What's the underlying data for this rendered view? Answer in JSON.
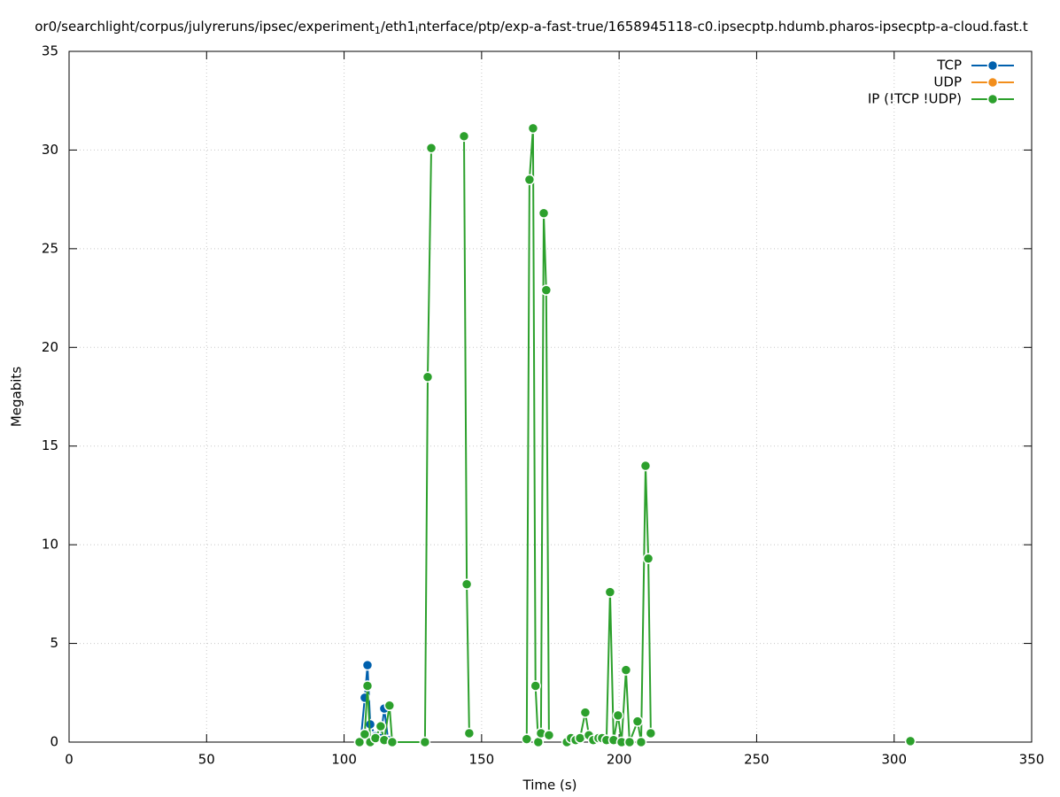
{
  "chart_data": {
    "type": "line",
    "title": [
      "or0/searchlight/corpus/julyreruns/ipsec/experiment",
      "1",
      "/eth1",
      "i",
      "nterface/ptp/exp-a-fast-true/1658945118-c0.ipsecptp.hdumb.pharos-ipsecptp-a-cloud.fast.t"
    ],
    "xlabel": "Time (s)",
    "ylabel": "Megabits",
    "xlim": [
      0,
      350
    ],
    "xticks": [
      0,
      50,
      100,
      150,
      200,
      250,
      300,
      350
    ],
    "ylim": [
      0,
      35
    ],
    "yticks": [
      0,
      5,
      10,
      15,
      20,
      25,
      30,
      35
    ],
    "grid": true,
    "legend": "top-right",
    "series": [
      {
        "name": "TCP",
        "color": "#0060ad",
        "x": [
          106,
          107.5,
          108.5,
          109.5,
          111.4,
          113.3,
          114.6,
          116
        ],
        "values": [
          0,
          2.25,
          3.9,
          0.9,
          0.3,
          0.2,
          1.7,
          0.1
        ]
      },
      {
        "name": "UDP",
        "color": "#f28e1c",
        "x": [],
        "values": []
      },
      {
        "name": "IP (!TCP  !UDP)",
        "color": "#2ca02c",
        "x": [
          105.6,
          107.5,
          108.5,
          109.5,
          111.4,
          113.3,
          114.6,
          116.5,
          117.5,
          129.4,
          130.4,
          131.7,
          null,
          143.6,
          144.6,
          145.5,
          null,
          166.4,
          167.4,
          168.7,
          169.6,
          170.6,
          171.6,
          172.6,
          173.5,
          174.5,
          null,
          181,
          182.5,
          184.2,
          185.8,
          187.7,
          189,
          190.6,
          192.5,
          193.8,
          195.4,
          196.7,
          198,
          199.6,
          200.9,
          202.5,
          203.8,
          206.7,
          208,
          209.6,
          210.6,
          211.5,
          null,
          305.9
        ],
        "values": [
          0,
          0.4,
          2.85,
          0,
          0.2,
          0.8,
          0.1,
          1.85,
          0,
          0,
          18.5,
          30.1,
          null,
          30.7,
          8.0,
          0.45,
          null,
          0.15,
          28.5,
          31.1,
          2.85,
          0,
          0.45,
          26.8,
          22.9,
          0.35,
          null,
          0,
          0.2,
          0.1,
          0.2,
          1.5,
          0.35,
          0.1,
          0.2,
          0.2,
          0.1,
          7.6,
          0.1,
          1.35,
          0,
          3.65,
          0,
          1.05,
          0,
          14.0,
          9.3,
          0.45,
          null,
          0.05
        ]
      }
    ]
  }
}
